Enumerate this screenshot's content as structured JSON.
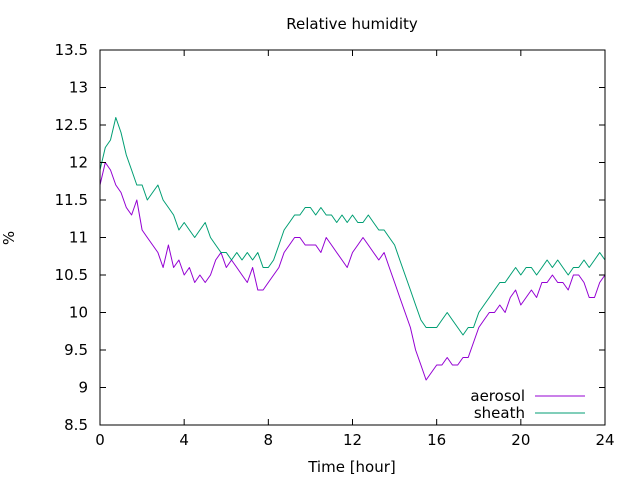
{
  "chart_data": {
    "type": "line",
    "title": "Relative humidity",
    "xlabel": "Time [hour]",
    "ylabel": "%",
    "xlim": [
      0,
      24
    ],
    "ylim": [
      8.5,
      13.5
    ],
    "xticks": [
      0,
      4,
      8,
      12,
      16,
      20,
      24
    ],
    "yticks": [
      8.5,
      9,
      9.5,
      10,
      10.5,
      11,
      11.5,
      12,
      12.5,
      13,
      13.5
    ],
    "grid": false,
    "legend_position": "bottom-right",
    "series": [
      {
        "name": "aerosol",
        "color": "#9400d3",
        "x": [
          0,
          0.25,
          0.5,
          0.75,
          1,
          1.25,
          1.5,
          1.75,
          2,
          2.25,
          2.5,
          2.75,
          3,
          3.25,
          3.5,
          3.75,
          4,
          4.25,
          4.5,
          4.75,
          5,
          5.25,
          5.5,
          5.75,
          6,
          6.25,
          6.5,
          6.75,
          7,
          7.25,
          7.5,
          7.75,
          8,
          8.25,
          8.5,
          8.75,
          9,
          9.25,
          9.5,
          9.75,
          10,
          10.25,
          10.5,
          10.75,
          11,
          11.25,
          11.5,
          11.75,
          12,
          12.25,
          12.5,
          12.75,
          13,
          13.25,
          13.5,
          13.75,
          14,
          14.25,
          14.5,
          14.75,
          15,
          15.25,
          15.5,
          15.75,
          16,
          16.25,
          16.5,
          16.75,
          17,
          17.25,
          17.5,
          17.75,
          18,
          18.25,
          18.5,
          18.75,
          19,
          19.25,
          19.5,
          19.75,
          20,
          20.25,
          20.5,
          20.75,
          21,
          21.25,
          21.5,
          21.75,
          22,
          22.25,
          22.5,
          22.75,
          23,
          23.25,
          23.5,
          23.75,
          24
        ],
        "values": [
          11.7,
          12.0,
          11.9,
          11.7,
          11.6,
          11.4,
          11.3,
          11.5,
          11.1,
          11.0,
          10.9,
          10.8,
          10.6,
          10.9,
          10.6,
          10.7,
          10.5,
          10.6,
          10.4,
          10.5,
          10.4,
          10.5,
          10.7,
          10.8,
          10.6,
          10.7,
          10.6,
          10.5,
          10.4,
          10.6,
          10.3,
          10.3,
          10.4,
          10.5,
          10.6,
          10.8,
          10.9,
          11.0,
          11.0,
          10.9,
          10.9,
          10.9,
          10.8,
          11.0,
          10.9,
          10.8,
          10.7,
          10.6,
          10.8,
          10.9,
          11.0,
          10.9,
          10.8,
          10.7,
          10.8,
          10.6,
          10.4,
          10.2,
          10.0,
          9.8,
          9.5,
          9.3,
          9.1,
          9.2,
          9.3,
          9.3,
          9.4,
          9.3,
          9.3,
          9.4,
          9.4,
          9.6,
          9.8,
          9.9,
          10.0,
          10.0,
          10.1,
          10.0,
          10.2,
          10.3,
          10.1,
          10.2,
          10.3,
          10.2,
          10.4,
          10.4,
          10.5,
          10.4,
          10.4,
          10.3,
          10.5,
          10.5,
          10.4,
          10.2,
          10.2,
          10.4,
          10.5
        ]
      },
      {
        "name": "sheath",
        "color": "#009e73",
        "x": [
          0,
          0.25,
          0.5,
          0.75,
          1,
          1.25,
          1.5,
          1.75,
          2,
          2.25,
          2.5,
          2.75,
          3,
          3.25,
          3.5,
          3.75,
          4,
          4.25,
          4.5,
          4.75,
          5,
          5.25,
          5.5,
          5.75,
          6,
          6.25,
          6.5,
          6.75,
          7,
          7.25,
          7.5,
          7.75,
          8,
          8.25,
          8.5,
          8.75,
          9,
          9.25,
          9.5,
          9.75,
          10,
          10.25,
          10.5,
          10.75,
          11,
          11.25,
          11.5,
          11.75,
          12,
          12.25,
          12.5,
          12.75,
          13,
          13.25,
          13.5,
          13.75,
          14,
          14.25,
          14.5,
          14.75,
          15,
          15.25,
          15.5,
          15.75,
          16,
          16.25,
          16.5,
          16.75,
          17,
          17.25,
          17.5,
          17.75,
          18,
          18.25,
          18.5,
          18.75,
          19,
          19.25,
          19.5,
          19.75,
          20,
          20.25,
          20.5,
          20.75,
          21,
          21.25,
          21.5,
          21.75,
          22,
          22.25,
          22.5,
          22.75,
          23,
          23.25,
          23.5,
          23.75,
          24
        ],
        "values": [
          11.9,
          12.2,
          12.3,
          12.6,
          12.4,
          12.1,
          11.9,
          11.7,
          11.7,
          11.5,
          11.6,
          11.7,
          11.5,
          11.4,
          11.3,
          11.1,
          11.2,
          11.1,
          11.0,
          11.1,
          11.2,
          11.0,
          10.9,
          10.8,
          10.8,
          10.7,
          10.8,
          10.7,
          10.8,
          10.7,
          10.8,
          10.6,
          10.6,
          10.7,
          10.9,
          11.1,
          11.2,
          11.3,
          11.3,
          11.4,
          11.4,
          11.3,
          11.4,
          11.3,
          11.3,
          11.2,
          11.3,
          11.2,
          11.3,
          11.2,
          11.2,
          11.3,
          11.2,
          11.1,
          11.1,
          11.0,
          10.9,
          10.7,
          10.5,
          10.3,
          10.1,
          9.9,
          9.8,
          9.8,
          9.8,
          9.9,
          10.0,
          9.9,
          9.8,
          9.7,
          9.8,
          9.8,
          10.0,
          10.1,
          10.2,
          10.3,
          10.4,
          10.4,
          10.5,
          10.6,
          10.5,
          10.6,
          10.6,
          10.5,
          10.6,
          10.7,
          10.6,
          10.7,
          10.6,
          10.5,
          10.6,
          10.6,
          10.7,
          10.6,
          10.7,
          10.8,
          10.7
        ]
      }
    ]
  }
}
